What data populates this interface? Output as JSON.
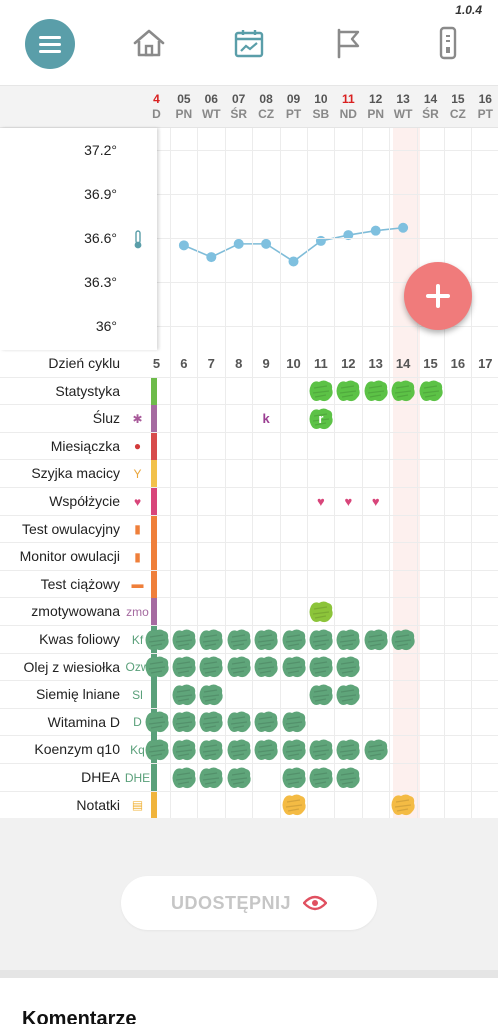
{
  "app": {
    "version": "1.0.4"
  },
  "nav": {
    "items": [
      {
        "name": "menu-icon"
      },
      {
        "name": "home-icon"
      },
      {
        "name": "calendar-chart-icon",
        "active": true
      },
      {
        "name": "flag-icon"
      },
      {
        "name": "ovulation-test-icon"
      }
    ]
  },
  "days": [
    {
      "num": "4",
      "wd": "D",
      "sun": true
    },
    {
      "num": "05",
      "wd": "PN"
    },
    {
      "num": "06",
      "wd": "WT"
    },
    {
      "num": "07",
      "wd": "ŚR"
    },
    {
      "num": "08",
      "wd": "CZ"
    },
    {
      "num": "09",
      "wd": "PT"
    },
    {
      "num": "10",
      "wd": "SB"
    },
    {
      "num": "11",
      "wd": "ND",
      "sun": true
    },
    {
      "num": "12",
      "wd": "PN"
    },
    {
      "num": "13",
      "wd": "WT"
    },
    {
      "num": "14",
      "wd": "ŚR"
    },
    {
      "num": "15",
      "wd": "CZ"
    },
    {
      "num": "16",
      "wd": "PT"
    }
  ],
  "temperature": {
    "ylabels": [
      "37.2°",
      "36.9°",
      "36.6°",
      "36.3°",
      "36°"
    ],
    "ylim": [
      36.0,
      37.2
    ],
    "points": [
      {
        "day": 1,
        "value": 36.55
      },
      {
        "day": 2,
        "value": 36.47
      },
      {
        "day": 3,
        "value": 36.56
      },
      {
        "day": 4,
        "value": 36.56
      },
      {
        "day": 5,
        "value": 36.44
      },
      {
        "day": 6,
        "value": 36.58
      },
      {
        "day": 7,
        "value": 36.62
      },
      {
        "day": 8,
        "value": 36.65
      },
      {
        "day": 9,
        "value": 36.67
      }
    ],
    "thermometer_icon": "thermometer-icon"
  },
  "cycle": {
    "label": "Dzień cyklu",
    "numbers": [
      "5",
      "6",
      "7",
      "8",
      "9",
      "10",
      "11",
      "12",
      "13",
      "14",
      "15",
      "16",
      "17"
    ]
  },
  "rows": [
    {
      "label": "Statystyka",
      "icon": "",
      "bar": "#6dbb4a",
      "color": "#5cc246",
      "cells": [
        6,
        7,
        8,
        9,
        10
      ]
    },
    {
      "label": "Śluz",
      "icon": "✱",
      "iconColor": "#a85a9a",
      "bar": "#a56aa0",
      "color": "#5cc246",
      "cells": [
        6
      ],
      "letters": [
        {
          "day": 4,
          "text": "k",
          "color": "#9b3e92"
        },
        {
          "day": 6,
          "text": "r",
          "color": "#fff"
        }
      ]
    },
    {
      "label": "Miesiączka",
      "icon": "●",
      "iconColor": "#d23a3a",
      "bar": "#d74b4b",
      "color": "#d23a3a",
      "cells": []
    },
    {
      "label": "Szyjka macicy",
      "icon": "Y",
      "iconColor": "#e9a63c",
      "bar": "#f2c14b",
      "color": "#f2c14b",
      "cells": []
    },
    {
      "label": "Współżycie",
      "icon": "♥",
      "iconColor": "#d8457a",
      "bar": "#d8457a",
      "color": "#d8457a",
      "cells": [],
      "hearts": [
        6,
        7,
        8
      ]
    },
    {
      "label": "Test owulacyjny",
      "icon": "▮",
      "iconColor": "#ef7f3a",
      "bar": "#ef7f3a",
      "color": "#ef7f3a",
      "cells": []
    },
    {
      "label": "Monitor owulacji",
      "icon": "▮",
      "iconColor": "#ef7f3a",
      "bar": "#ef7f3a",
      "color": "#ef7f3a",
      "cells": []
    },
    {
      "label": "Test ciążowy",
      "icon": "▬",
      "iconColor": "#ef7f3a",
      "bar": "#ef7f3a",
      "color": "#ef7f3a",
      "cells": []
    },
    {
      "label": "zmotywowana",
      "icon": "zmo",
      "iconColor": "#a56aa0",
      "bar": "#a56aa0",
      "color": "#8cc43a",
      "cells": [
        6
      ]
    },
    {
      "label": "Kwas foliowy",
      "icon": "Kf",
      "iconColor": "#5aa07a",
      "bar": "#5aa07a",
      "color": "#5fa57a",
      "cells": [
        0,
        1,
        2,
        3,
        4,
        5,
        6,
        7,
        8,
        9
      ]
    },
    {
      "label": "Olej z wiesiołka",
      "icon": "Ozw",
      "iconColor": "#5aa07a",
      "bar": "#5aa07a",
      "color": "#5fa57a",
      "cells": [
        0,
        1,
        2,
        3,
        4,
        5,
        6,
        7
      ]
    },
    {
      "label": "Siemię lniane",
      "icon": "Sl",
      "iconColor": "#5aa07a",
      "bar": "#5aa07a",
      "color": "#5fa57a",
      "cells": [
        1,
        2,
        6,
        7
      ]
    },
    {
      "label": "Witamina D",
      "icon": "D",
      "iconColor": "#5aa07a",
      "bar": "#5aa07a",
      "color": "#5fa57a",
      "cells": [
        0,
        1,
        2,
        3,
        4,
        5
      ]
    },
    {
      "label": "Koenzym q10",
      "icon": "Kq",
      "iconColor": "#5aa07a",
      "bar": "#5aa07a",
      "color": "#5fa57a",
      "cells": [
        0,
        1,
        2,
        3,
        4,
        5,
        6,
        7,
        8
      ]
    },
    {
      "label": "DHEA",
      "icon": "DHE",
      "iconColor": "#5aa07a",
      "bar": "#5aa07a",
      "color": "#5fa57a",
      "cells": [
        1,
        2,
        3,
        5,
        6,
        7
      ]
    },
    {
      "label": "Notatki",
      "icon": "▤",
      "iconColor": "#f0b43c",
      "bar": "#f0b43c",
      "color": "#f4bb44",
      "cells": [
        5,
        9
      ]
    }
  ],
  "share": {
    "label": "UDOSTĘPNIJ"
  },
  "comments": {
    "title": "Komentarze"
  }
}
